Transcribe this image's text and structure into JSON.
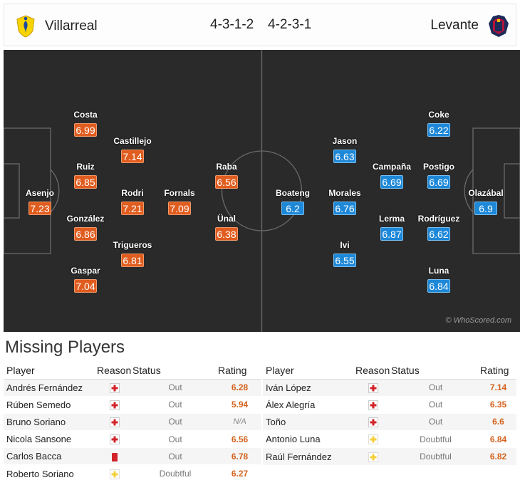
{
  "header": {
    "home_team": "Villarreal",
    "home_formation": "4-3-1-2",
    "away_formation": "4-2-3-1",
    "away_team": "Levante"
  },
  "colors": {
    "home_rating": "#e05d1f",
    "away_rating": "#1e88d8",
    "pitch": "#2a2a2a",
    "missing_rating": "#d4621c"
  },
  "pitch": {
    "watermark": "© WhoScored.com",
    "home_players": [
      {
        "name": "Asenjo",
        "rating": "7.23"
      },
      {
        "name": "Costa",
        "rating": "6.99"
      },
      {
        "name": "Ruiz",
        "rating": "6.85"
      },
      {
        "name": "González",
        "rating": "6.86"
      },
      {
        "name": "Gaspar",
        "rating": "7.04"
      },
      {
        "name": "Castillejo",
        "rating": "7.14"
      },
      {
        "name": "Rodri",
        "rating": "7.21"
      },
      {
        "name": "Trigueros",
        "rating": "6.81"
      },
      {
        "name": "Fornals",
        "rating": "7.09"
      },
      {
        "name": "Raba",
        "rating": "6.56"
      },
      {
        "name": "Ünal",
        "rating": "6.38"
      }
    ],
    "away_players": [
      {
        "name": "Boateng",
        "rating": "6.2"
      },
      {
        "name": "Jason",
        "rating": "6.63"
      },
      {
        "name": "Morales",
        "rating": "6.76"
      },
      {
        "name": "Ivi",
        "rating": "6.55"
      },
      {
        "name": "Campaña",
        "rating": "6.69"
      },
      {
        "name": "Lerma",
        "rating": "6.87"
      },
      {
        "name": "Coke",
        "rating": "6.22"
      },
      {
        "name": "Postigo",
        "rating": "6.69"
      },
      {
        "name": "Rodríguez",
        "rating": "6.62"
      },
      {
        "name": "Luna",
        "rating": "6.84"
      },
      {
        "name": "Olazábal",
        "rating": "6.9"
      }
    ]
  },
  "missing": {
    "title": "Missing Players",
    "columns": {
      "player": "Player",
      "reason": "Reason",
      "status": "Status",
      "rating": "Rating"
    },
    "home": [
      {
        "player": "Andrés Fernández",
        "reason": "injury-icon",
        "status": "Out",
        "rating": "6.28"
      },
      {
        "player": "Rúben Semedo",
        "reason": "injury-icon",
        "status": "Out",
        "rating": "5.94"
      },
      {
        "player": "Bruno Soriano",
        "reason": "injury-icon",
        "status": "Out",
        "rating": "N/A"
      },
      {
        "player": "Nicola Sansone",
        "reason": "injury-icon",
        "status": "Out",
        "rating": "6.56"
      },
      {
        "player": "Carlos Bacca",
        "reason": "red-card-icon",
        "status": "Out",
        "rating": "6.78"
      },
      {
        "player": "Roberto Soriano",
        "reason": "doubtful-icon",
        "status": "Doubtful",
        "rating": "6.27"
      }
    ],
    "away": [
      {
        "player": "Iván López",
        "reason": "injury-icon",
        "status": "Out",
        "rating": "7.14"
      },
      {
        "player": "Álex Alegría",
        "reason": "injury-icon",
        "status": "Out",
        "rating": "6.35"
      },
      {
        "player": "Toño",
        "reason": "injury-icon",
        "status": "Out",
        "rating": "6.6"
      },
      {
        "player": "Antonio Luna",
        "reason": "doubtful-icon",
        "status": "Doubtful",
        "rating": "6.84"
      },
      {
        "player": "Raúl Fernández",
        "reason": "doubtful-icon",
        "status": "Doubtful",
        "rating": "6.82"
      }
    ]
  }
}
